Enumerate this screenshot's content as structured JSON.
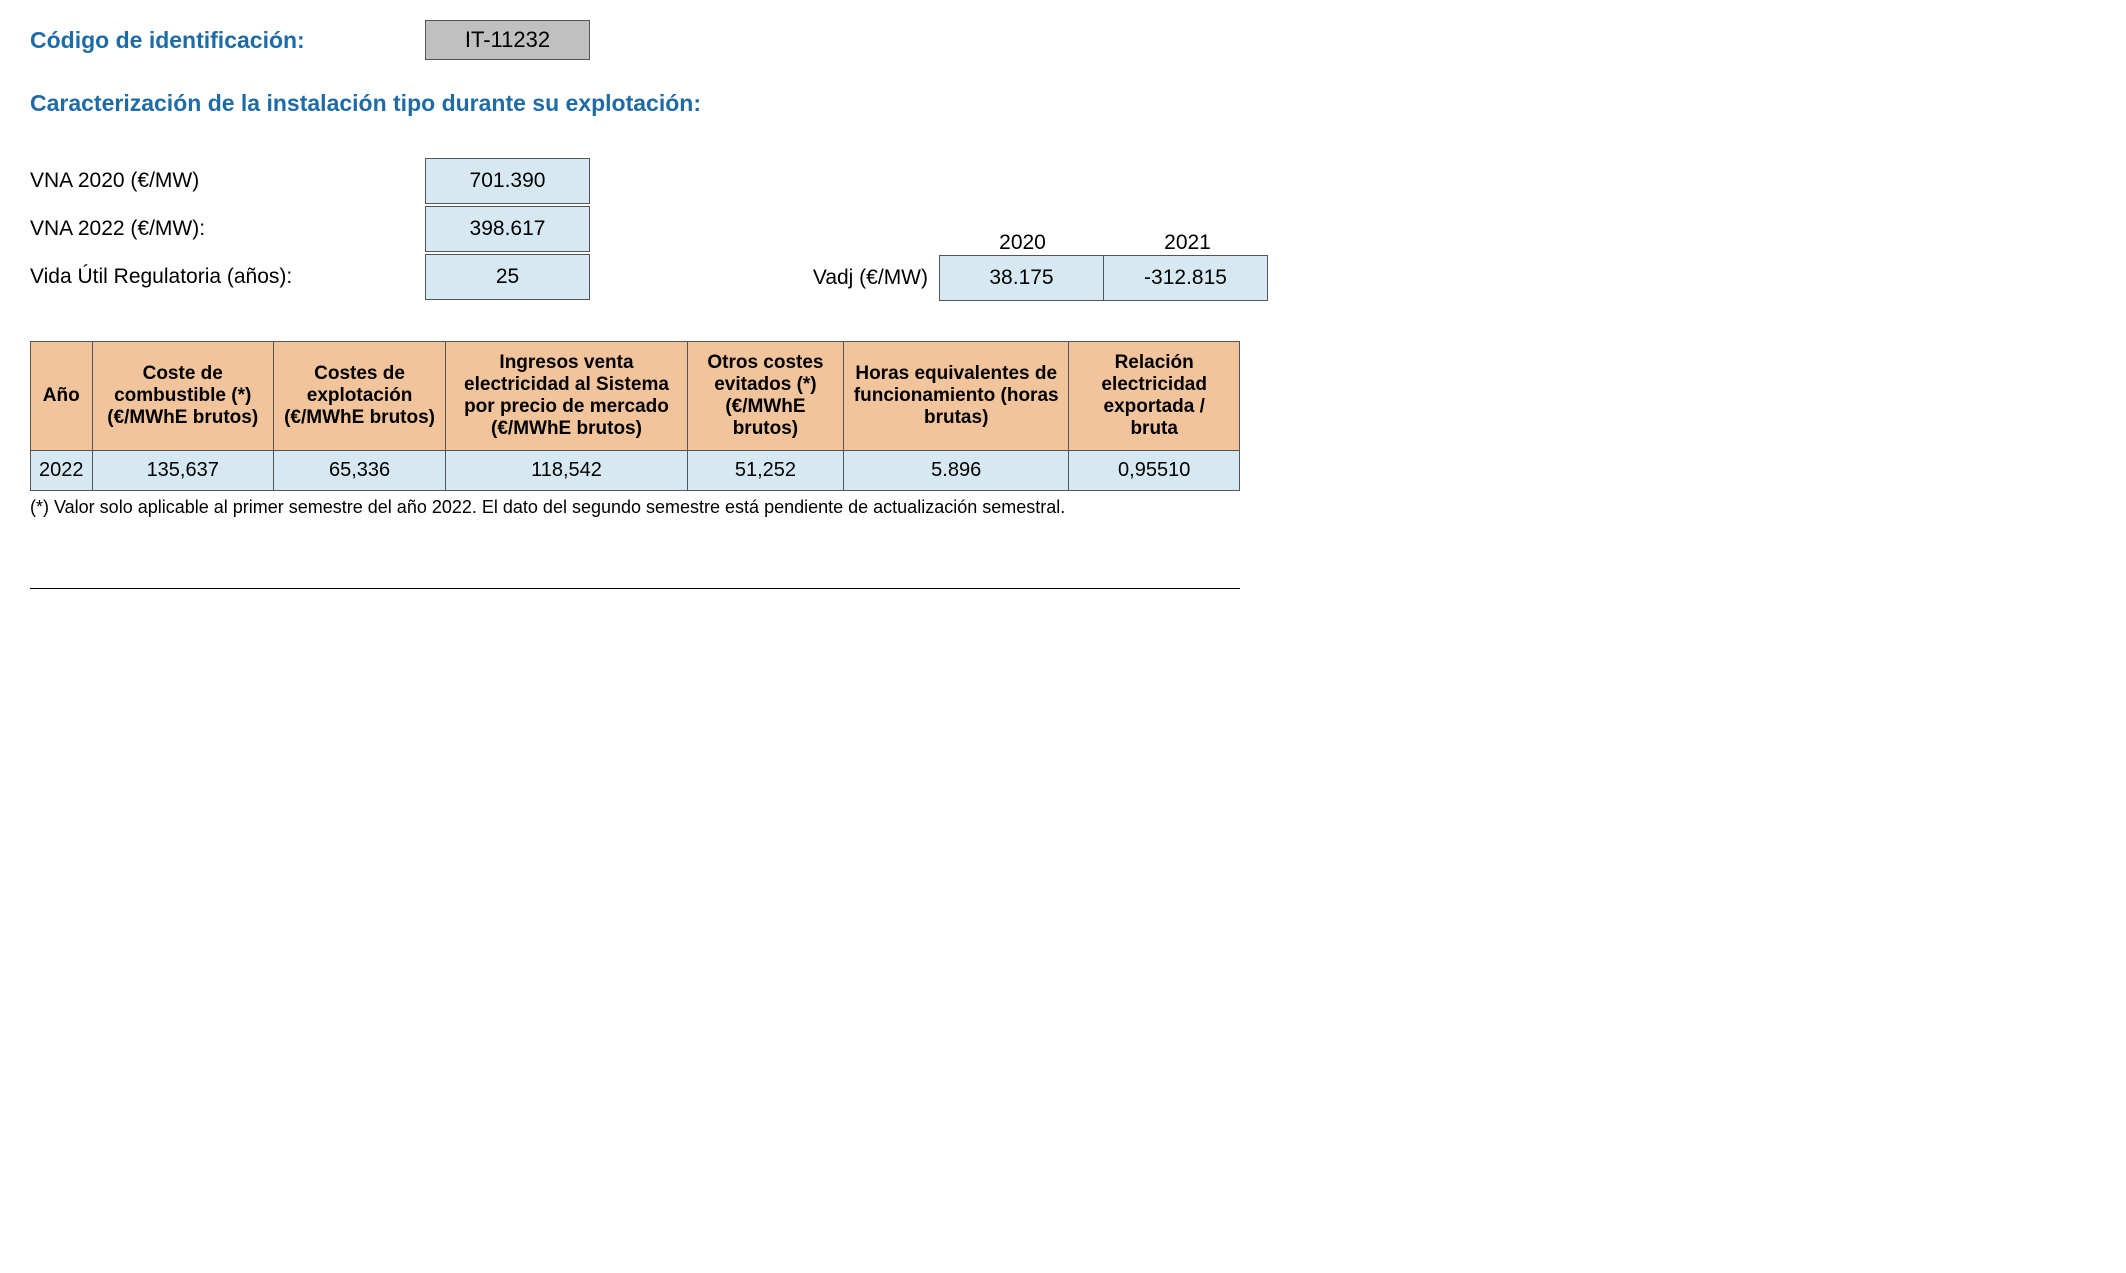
{
  "header": {
    "id_label": "Código de identificación:",
    "id_value": "IT-11232"
  },
  "section_heading": "Caracterización de la instalación tipo durante su explotación:",
  "params": {
    "vna2020_label": "VNA 2020 (€/MW)",
    "vna2020_value": "701.390",
    "vna2022_label": "VNA 2022 (€/MW):",
    "vna2022_value": "398.617",
    "life_label": "Vida Útil Regulatoria (años):",
    "life_value": "25"
  },
  "vadj": {
    "label": "Vadj (€/MW)",
    "year1": "2020",
    "year2": "2021",
    "value1": "38.175",
    "value2": "-312.815"
  },
  "table": {
    "columns": [
      "Año",
      "Coste de combustible (*) (€/MWhE brutos)",
      "Costes de explotación (€/MWhE brutos)",
      "Ingresos venta electricidad al Sistema por precio de mercado (€/MWhE brutos)",
      "Otros costes evitados (*) (€/MWhE brutos)",
      "Horas equivalentes de funcionamiento (horas brutas)",
      "Relación electricidad exportada / bruta"
    ],
    "row": {
      "year": "2022",
      "fuel_cost": "135,637",
      "op_cost": "65,336",
      "income": "118,542",
      "other_avoided": "51,252",
      "eq_hours": "5.896",
      "ratio": "0,95510"
    },
    "header_bg": "#f2c49b",
    "cell_bg": "#d6e9f2",
    "border_color": "#555555"
  },
  "footnote": "(*) Valor solo aplicable al primer semestre del año 2022. El dato del segundo semestre está pendiente de actualización semestral.",
  "colors": {
    "heading": "#1f6ba5",
    "code_box_bg": "#c0c0c0",
    "value_box_bg": "#d6e9f2"
  }
}
